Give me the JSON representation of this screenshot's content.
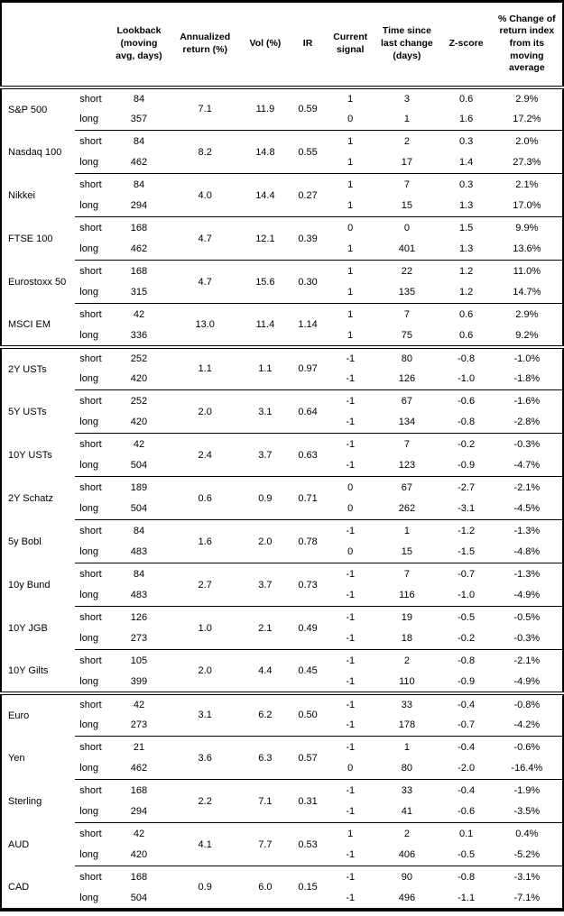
{
  "columns": [
    "",
    "",
    "Lookback (moving avg, days)",
    "Annualized return (%)",
    "Vol (%)",
    "IR",
    "Current signal",
    "Time since last change (days)",
    "Z-score",
    "% Change of return index from its moving average"
  ],
  "row_labels": {
    "short": "short",
    "long": "long"
  },
  "colors": {
    "text": "#000000",
    "border": "#000000",
    "background": "#ffffff"
  },
  "sections": [
    {
      "instruments": [
        {
          "name": "S&P 500",
          "annualized_return": "7.1",
          "vol": "11.9",
          "ir": "0.59",
          "short": {
            "lookback": "84",
            "signal": "1",
            "time_since_change": "3",
            "zscore": "0.6",
            "pct_change": "2.9%"
          },
          "long": {
            "lookback": "357",
            "signal": "0",
            "time_since_change": "1",
            "zscore": "1.6",
            "pct_change": "17.2%"
          }
        },
        {
          "name": "Nasdaq 100",
          "annualized_return": "8.2",
          "vol": "14.8",
          "ir": "0.55",
          "short": {
            "lookback": "84",
            "signal": "1",
            "time_since_change": "2",
            "zscore": "0.3",
            "pct_change": "2.0%"
          },
          "long": {
            "lookback": "462",
            "signal": "1",
            "time_since_change": "17",
            "zscore": "1.4",
            "pct_change": "27.3%"
          }
        },
        {
          "name": "Nikkei",
          "annualized_return": "4.0",
          "vol": "14.4",
          "ir": "0.27",
          "short": {
            "lookback": "84",
            "signal": "1",
            "time_since_change": "7",
            "zscore": "0.3",
            "pct_change": "2.1%"
          },
          "long": {
            "lookback": "294",
            "signal": "1",
            "time_since_change": "15",
            "zscore": "1.3",
            "pct_change": "17.0%"
          }
        },
        {
          "name": "FTSE 100",
          "annualized_return": "4.7",
          "vol": "12.1",
          "ir": "0.39",
          "short": {
            "lookback": "168",
            "signal": "0",
            "time_since_change": "0",
            "zscore": "1.5",
            "pct_change": "9.9%"
          },
          "long": {
            "lookback": "462",
            "signal": "1",
            "time_since_change": "401",
            "zscore": "1.3",
            "pct_change": "13.6%"
          }
        },
        {
          "name": "Eurostoxx 50",
          "annualized_return": "4.7",
          "vol": "15.6",
          "ir": "0.30",
          "short": {
            "lookback": "168",
            "signal": "1",
            "time_since_change": "22",
            "zscore": "1.2",
            "pct_change": "11.0%"
          },
          "long": {
            "lookback": "315",
            "signal": "1",
            "time_since_change": "135",
            "zscore": "1.2",
            "pct_change": "14.7%"
          }
        },
        {
          "name": "MSCI EM",
          "annualized_return": "13.0",
          "vol": "11.4",
          "ir": "1.14",
          "short": {
            "lookback": "42",
            "signal": "1",
            "time_since_change": "7",
            "zscore": "0.6",
            "pct_change": "2.9%"
          },
          "long": {
            "lookback": "336",
            "signal": "1",
            "time_since_change": "75",
            "zscore": "0.6",
            "pct_change": "9.2%"
          }
        }
      ]
    },
    {
      "instruments": [
        {
          "name": "2Y USTs",
          "annualized_return": "1.1",
          "vol": "1.1",
          "ir": "0.97",
          "short": {
            "lookback": "252",
            "signal": "-1",
            "time_since_change": "80",
            "zscore": "-0.8",
            "pct_change": "-1.0%"
          },
          "long": {
            "lookback": "420",
            "signal": "-1",
            "time_since_change": "126",
            "zscore": "-1.0",
            "pct_change": "-1.8%"
          }
        },
        {
          "name": "5Y USTs",
          "annualized_return": "2.0",
          "vol": "3.1",
          "ir": "0.64",
          "short": {
            "lookback": "252",
            "signal": "-1",
            "time_since_change": "67",
            "zscore": "-0.6",
            "pct_change": "-1.6%"
          },
          "long": {
            "lookback": "420",
            "signal": "-1",
            "time_since_change": "134",
            "zscore": "-0.8",
            "pct_change": "-2.8%"
          }
        },
        {
          "name": "10Y USTs",
          "annualized_return": "2.4",
          "vol": "3.7",
          "ir": "0.63",
          "short": {
            "lookback": "42",
            "signal": "-1",
            "time_since_change": "7",
            "zscore": "-0.2",
            "pct_change": "-0.3%"
          },
          "long": {
            "lookback": "504",
            "signal": "-1",
            "time_since_change": "123",
            "zscore": "-0.9",
            "pct_change": "-4.7%"
          }
        },
        {
          "name": "2Y Schatz",
          "annualized_return": "0.6",
          "vol": "0.9",
          "ir": "0.71",
          "short": {
            "lookback": "189",
            "signal": "0",
            "time_since_change": "67",
            "zscore": "-2.7",
            "pct_change": "-2.1%"
          },
          "long": {
            "lookback": "504",
            "signal": "0",
            "time_since_change": "262",
            "zscore": "-3.1",
            "pct_change": "-4.5%"
          }
        },
        {
          "name": "5y Bobl",
          "annualized_return": "1.6",
          "vol": "2.0",
          "ir": "0.78",
          "short": {
            "lookback": "84",
            "signal": "-1",
            "time_since_change": "1",
            "zscore": "-1.2",
            "pct_change": "-1.3%"
          },
          "long": {
            "lookback": "483",
            "signal": "0",
            "time_since_change": "15",
            "zscore": "-1.5",
            "pct_change": "-4.8%"
          }
        },
        {
          "name": "10y Bund",
          "annualized_return": "2.7",
          "vol": "3.7",
          "ir": "0.73",
          "short": {
            "lookback": "84",
            "signal": "-1",
            "time_since_change": "7",
            "zscore": "-0.7",
            "pct_change": "-1.3%"
          },
          "long": {
            "lookback": "483",
            "signal": "-1",
            "time_since_change": "116",
            "zscore": "-1.0",
            "pct_change": "-4.9%"
          }
        },
        {
          "name": "10Y JGB",
          "annualized_return": "1.0",
          "vol": "2.1",
          "ir": "0.49",
          "short": {
            "lookback": "126",
            "signal": "-1",
            "time_since_change": "19",
            "zscore": "-0.5",
            "pct_change": "-0.5%"
          },
          "long": {
            "lookback": "273",
            "signal": "-1",
            "time_since_change": "18",
            "zscore": "-0.2",
            "pct_change": "-0.3%"
          }
        },
        {
          "name": "10Y Gilts",
          "annualized_return": "2.0",
          "vol": "4.4",
          "ir": "0.45",
          "short": {
            "lookback": "105",
            "signal": "-1",
            "time_since_change": "2",
            "zscore": "-0.8",
            "pct_change": "-2.1%"
          },
          "long": {
            "lookback": "399",
            "signal": "-1",
            "time_since_change": "110",
            "zscore": "-0.9",
            "pct_change": "-4.9%"
          }
        }
      ]
    },
    {
      "instruments": [
        {
          "name": "Euro",
          "annualized_return": "3.1",
          "vol": "6.2",
          "ir": "0.50",
          "short": {
            "lookback": "42",
            "signal": "-1",
            "time_since_change": "33",
            "zscore": "-0.4",
            "pct_change": "-0.8%"
          },
          "long": {
            "lookback": "273",
            "signal": "-1",
            "time_since_change": "178",
            "zscore": "-0.7",
            "pct_change": "-4.2%"
          }
        },
        {
          "name": "Yen",
          "annualized_return": "3.6",
          "vol": "6.3",
          "ir": "0.57",
          "short": {
            "lookback": "21",
            "signal": "-1",
            "time_since_change": "1",
            "zscore": "-0.4",
            "pct_change": "-0.6%"
          },
          "long": {
            "lookback": "462",
            "signal": "0",
            "time_since_change": "80",
            "zscore": "-2.0",
            "pct_change": "-16.4%"
          }
        },
        {
          "name": "Sterling",
          "annualized_return": "2.2",
          "vol": "7.1",
          "ir": "0.31",
          "short": {
            "lookback": "168",
            "signal": "-1",
            "time_since_change": "33",
            "zscore": "-0.4",
            "pct_change": "-1.9%"
          },
          "long": {
            "lookback": "294",
            "signal": "-1",
            "time_since_change": "41",
            "zscore": "-0.6",
            "pct_change": "-3.5%"
          }
        },
        {
          "name": "AUD",
          "annualized_return": "4.1",
          "vol": "7.7",
          "ir": "0.53",
          "short": {
            "lookback": "42",
            "signal": "1",
            "time_since_change": "2",
            "zscore": "0.1",
            "pct_change": "0.4%"
          },
          "long": {
            "lookback": "420",
            "signal": "-1",
            "time_since_change": "406",
            "zscore": "-0.5",
            "pct_change": "-5.2%"
          }
        },
        {
          "name": "CAD",
          "annualized_return": "0.9",
          "vol": "6.0",
          "ir": "0.15",
          "short": {
            "lookback": "168",
            "signal": "-1",
            "time_since_change": "90",
            "zscore": "-0.8",
            "pct_change": "-3.1%"
          },
          "long": {
            "lookback": "504",
            "signal": "-1",
            "time_since_change": "496",
            "zscore": "-1.1",
            "pct_change": "-7.1%"
          }
        }
      ]
    }
  ]
}
